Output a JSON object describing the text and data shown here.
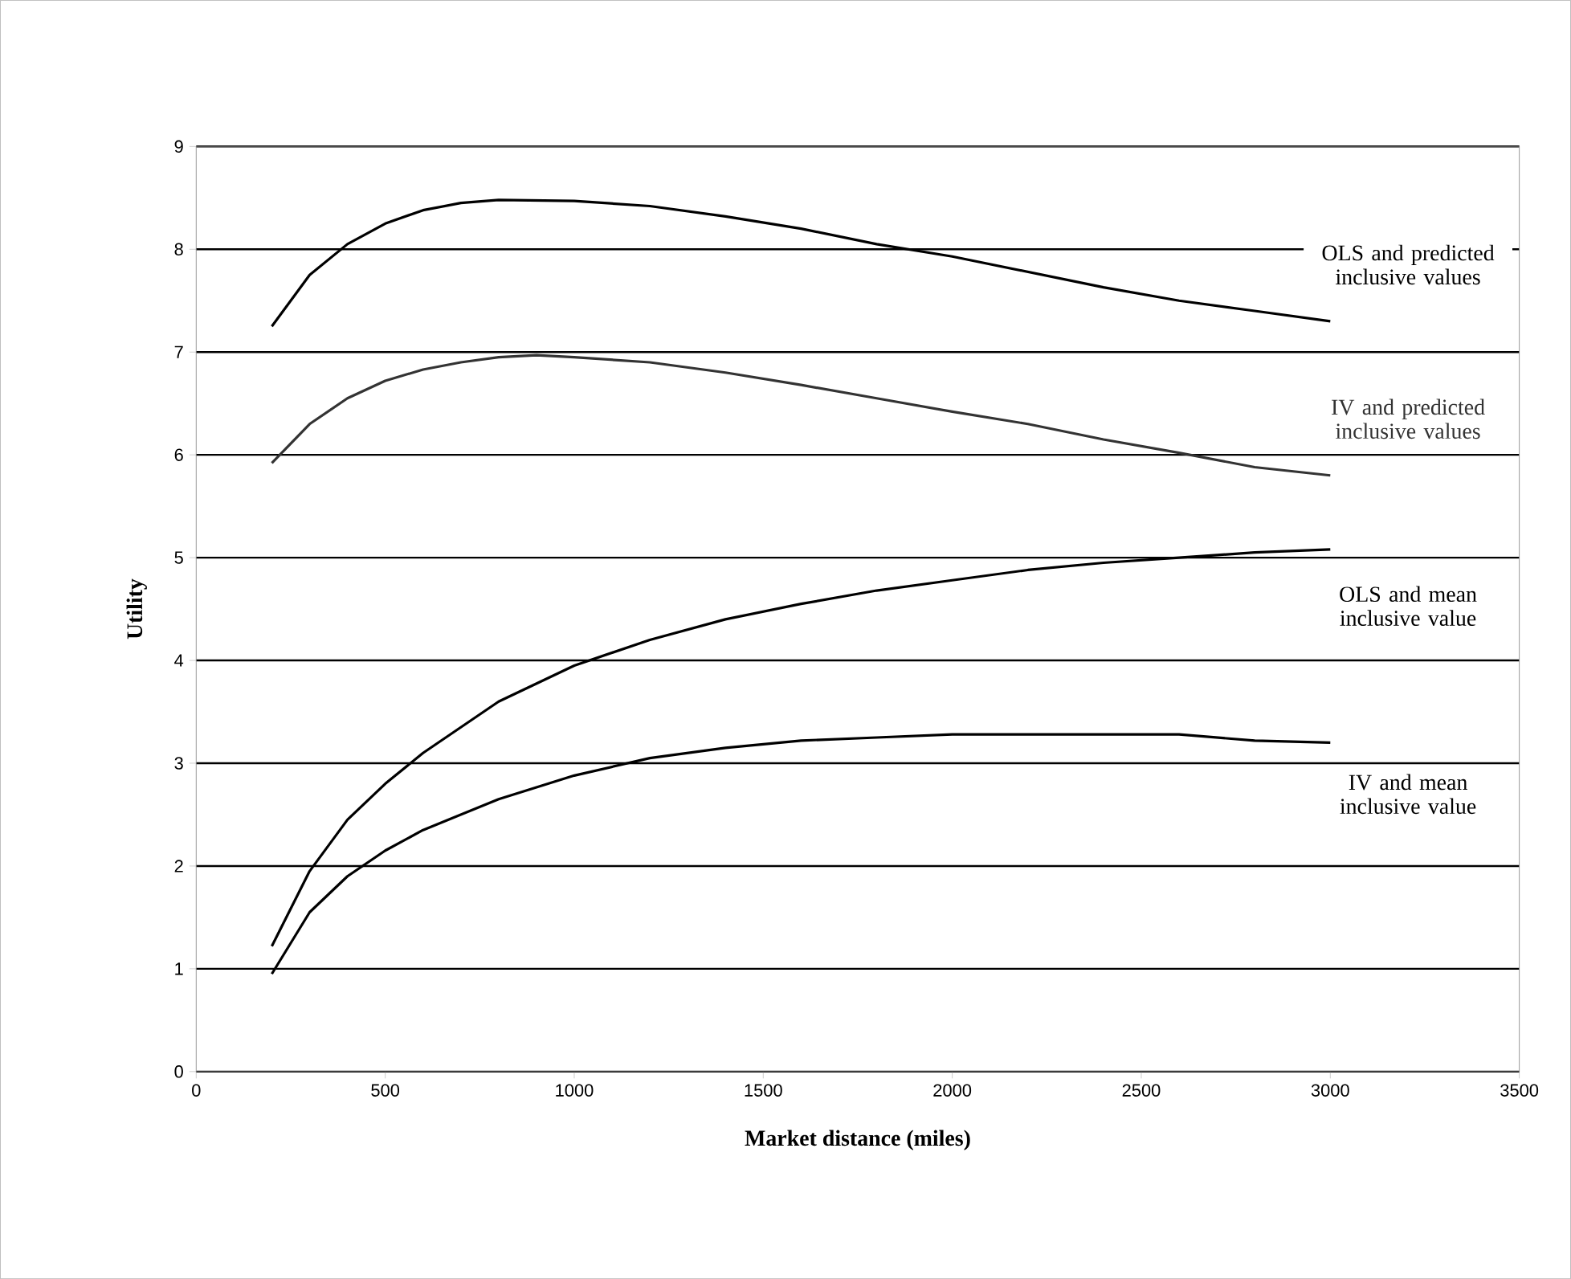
{
  "chart_data": {
    "type": "line",
    "xlabel": "Market distance (miles)",
    "ylabel": "Utility",
    "xlim": [
      0,
      3500
    ],
    "xticks": [
      0,
      500,
      1000,
      1500,
      2000,
      2500,
      3000,
      3500
    ],
    "ylim": [
      0,
      9
    ],
    "yticks": [
      0,
      1,
      2,
      3,
      4,
      5,
      6,
      7,
      8,
      9
    ],
    "grid": "y",
    "legend": false,
    "marker": "none",
    "line_style": "solid",
    "series": [
      {
        "name": "OLS and predicted inclusive values",
        "color": "#000000",
        "x": [
          200,
          300,
          400,
          500,
          600,
          700,
          800,
          1000,
          1200,
          1400,
          1600,
          1800,
          2000,
          2200,
          2400,
          2600,
          2800,
          3000
        ],
        "values": [
          7.25,
          7.75,
          8.05,
          8.25,
          8.38,
          8.45,
          8.48,
          8.47,
          8.42,
          8.32,
          8.2,
          8.05,
          7.93,
          7.78,
          7.63,
          7.5,
          7.4,
          7.3
        ]
      },
      {
        "name": "IV and predicted inclusive values",
        "color": "#333333",
        "x": [
          200,
          300,
          400,
          500,
          600,
          700,
          800,
          900,
          1000,
          1200,
          1400,
          1600,
          1800,
          2000,
          2200,
          2400,
          2600,
          2800,
          3000
        ],
        "values": [
          5.92,
          6.3,
          6.55,
          6.72,
          6.83,
          6.9,
          6.95,
          6.97,
          6.95,
          6.9,
          6.8,
          6.68,
          6.55,
          6.42,
          6.3,
          6.15,
          6.02,
          5.88,
          5.8
        ]
      },
      {
        "name": "OLS and mean inclusive value",
        "color": "#000000",
        "x": [
          200,
          300,
          400,
          500,
          600,
          800,
          1000,
          1200,
          1400,
          1600,
          1800,
          2000,
          2200,
          2400,
          2600,
          2800,
          3000
        ],
        "values": [
          1.22,
          1.95,
          2.45,
          2.8,
          3.1,
          3.6,
          3.95,
          4.2,
          4.4,
          4.55,
          4.68,
          4.78,
          4.88,
          4.95,
          5.0,
          5.05,
          5.08
        ]
      },
      {
        "name": "IV and mean inclusive value",
        "color": "#000000",
        "x": [
          200,
          300,
          400,
          500,
          600,
          800,
          1000,
          1200,
          1400,
          1600,
          1800,
          2000,
          2200,
          2400,
          2600,
          2800,
          3000
        ],
        "values": [
          0.95,
          1.55,
          1.9,
          2.15,
          2.35,
          2.65,
          2.88,
          3.05,
          3.15,
          3.22,
          3.25,
          3.28,
          3.28,
          3.28,
          3.28,
          3.22,
          3.2
        ]
      }
    ]
  }
}
